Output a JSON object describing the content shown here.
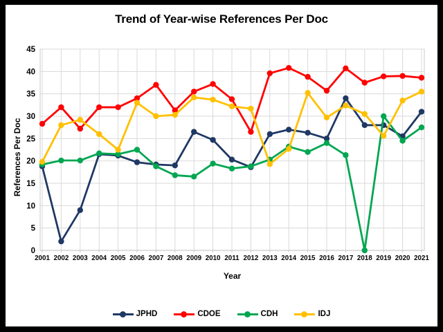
{
  "title": "Trend of Year-wise References Per Doc",
  "x_axis_title": "Year",
  "y_axis_title": "References Per Doc",
  "colors": {
    "frame": "#000000",
    "background": "#ffffff",
    "gridline": "#d9d9d9",
    "plot_border": "#c9c9c9",
    "text": "#000000"
  },
  "legend": [
    "JPHD",
    "CDOE",
    "CDH",
    "IDJ"
  ],
  "chart_data": {
    "type": "line",
    "title": "Trend of Year-wise References Per Doc",
    "xlabel": "Year",
    "ylabel": "References Per Doc",
    "ylim": [
      0,
      45
    ],
    "y_ticks": [
      0,
      5,
      10,
      15,
      20,
      25,
      30,
      35,
      40,
      45
    ],
    "grid": true,
    "legend_position": "bottom",
    "marker": "circle",
    "categories": [
      "2001",
      "2002",
      "2003",
      "2004",
      "2005",
      "2006",
      "2007",
      "2008",
      "2009",
      "2010",
      "2011",
      "2012",
      "2013",
      "2014",
      "2015",
      "2016",
      "2017",
      "2018",
      "2019",
      "2020",
      "2021"
    ],
    "series": [
      {
        "name": "JPHD",
        "color": "#1f3864",
        "values": [
          18.8,
          2,
          9,
          21.5,
          21.2,
          19.7,
          19.2,
          19,
          26.5,
          24.7,
          20.3,
          18.6,
          26,
          27,
          26.3,
          25,
          34,
          28,
          28,
          25.5,
          31
        ]
      },
      {
        "name": "CDOE",
        "color": "#ff0000",
        "values": [
          28.3,
          32,
          27.2,
          32,
          32,
          34,
          37,
          31.3,
          35.5,
          37.2,
          33.8,
          26.5,
          39.6,
          40.8,
          38.8,
          35.7,
          40.7,
          37.5,
          38.9,
          39,
          38.6
        ]
      },
      {
        "name": "CDH",
        "color": "#00a651",
        "values": [
          19.2,
          20.1,
          20.1,
          21.7,
          21.5,
          22.5,
          18.8,
          16.8,
          16.5,
          19.4,
          18.3,
          18.8,
          20.3,
          23.2,
          22,
          24,
          21.3,
          0,
          30,
          24.5,
          27.5
        ]
      },
      {
        "name": "IDJ",
        "color": "#ffc000",
        "values": [
          19.8,
          28,
          29.2,
          26,
          22.5,
          33,
          30,
          30.3,
          34.2,
          33.7,
          32.2,
          31.7,
          19.3,
          22.7,
          35.2,
          29.7,
          32.4,
          30.5,
          25.6,
          33.5,
          35.5
        ]
      }
    ]
  }
}
